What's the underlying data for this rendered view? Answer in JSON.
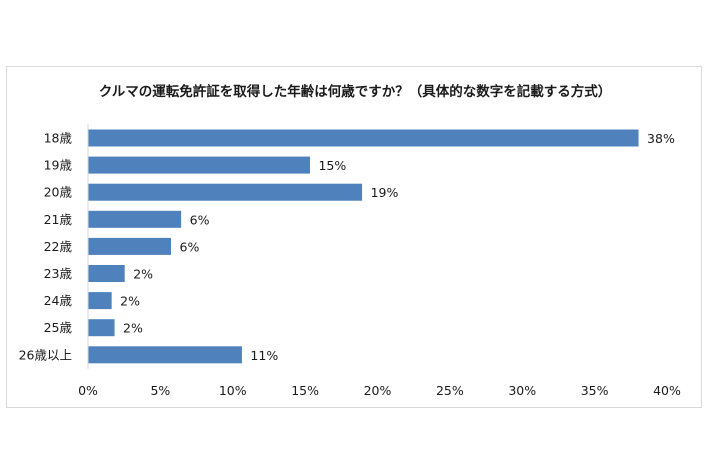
{
  "chart_data": {
    "type": "bar",
    "orientation": "horizontal",
    "title": "クルマの運転免許証を取得した年齢は何歳ですか？（具体的な数字を記載する方式）",
    "categories": [
      "18歳",
      "19歳",
      "20歳",
      "21歳",
      "22歳",
      "23歳",
      "24歳",
      "25歳",
      "26歳以上"
    ],
    "values": [
      38,
      15.3,
      18.9,
      6.4,
      5.7,
      2.5,
      1.6,
      1.8,
      10.6
    ],
    "data_labels": [
      "38%",
      "15%",
      "19%",
      "6%",
      "6%",
      "2%",
      "2%",
      "2%",
      "11%"
    ],
    "xlim": [
      0,
      40
    ],
    "xticks": [
      "0%",
      "5%",
      "10%",
      "15%",
      "20%",
      "25%",
      "30%",
      "35%",
      "40%"
    ],
    "grid": false,
    "legend": "none",
    "bar_color": "#4f81bd"
  }
}
